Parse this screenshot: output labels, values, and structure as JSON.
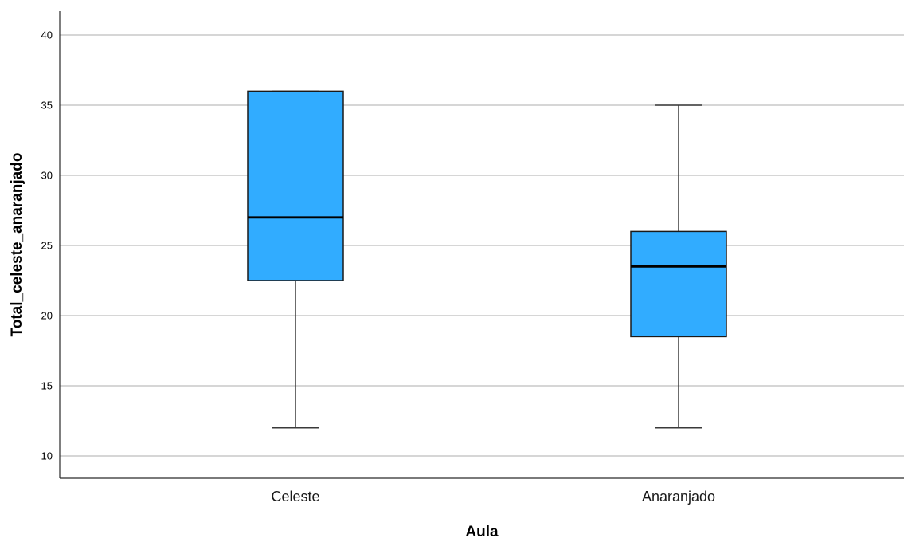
{
  "chart_data": {
    "type": "boxplot",
    "xlabel": "Aula",
    "ylabel": "Total_celeste_anaranjado",
    "categories": [
      "Celeste",
      "Anaranjado"
    ],
    "boxes": [
      {
        "category": "Celeste",
        "min": 12,
        "q1": 22.5,
        "median": 27,
        "q3": 36,
        "max": 36
      },
      {
        "category": "Anaranjado",
        "min": 12,
        "q1": 18.5,
        "median": 23.5,
        "q3": 26,
        "max": 35
      }
    ],
    "ylim": [
      8.4,
      41.6
    ],
    "yticks": [
      10,
      15,
      20,
      25,
      30,
      35,
      40
    ],
    "grid": "horizontal",
    "legend": "none",
    "colors": {
      "box_fill": "#31acff",
      "box_stroke": "#1a1a1a",
      "median": "#000000",
      "whisker": "#3a3a3a",
      "grid": "#c8c8c8",
      "axis": "#2a2a2a"
    }
  }
}
